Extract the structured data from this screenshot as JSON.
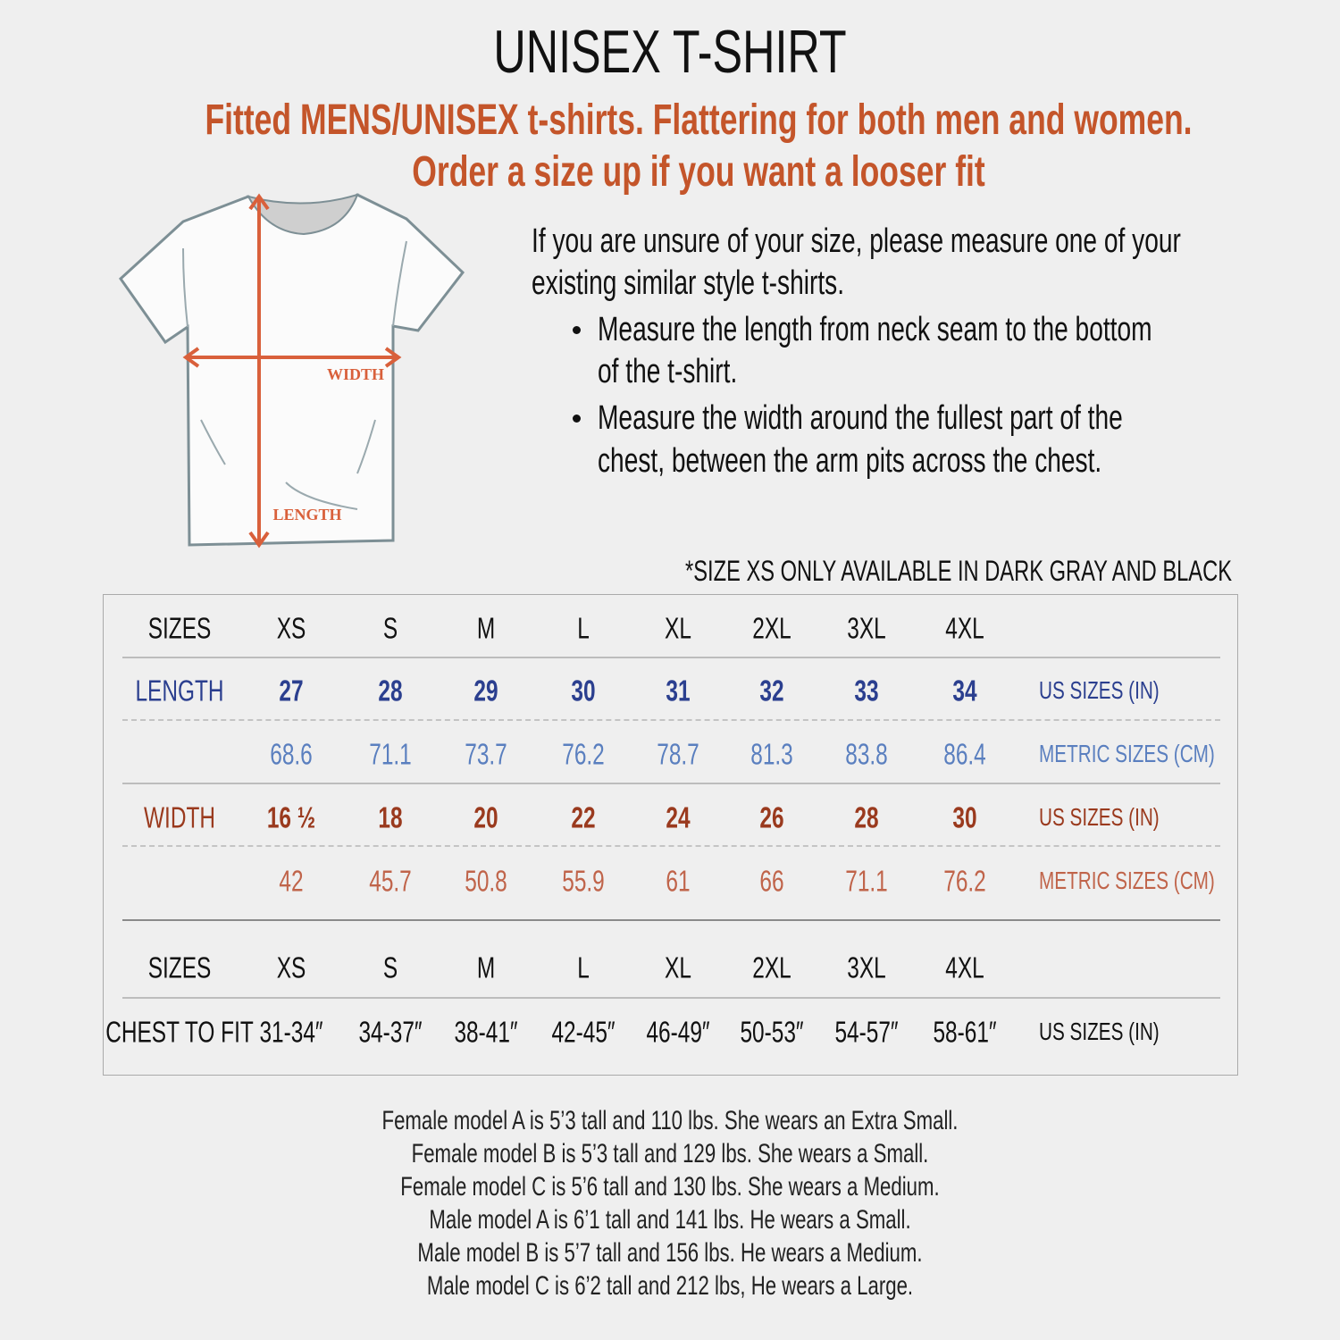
{
  "title": "UNISEX T-SHIRT",
  "subtitle": [
    "Fitted MENS/UNISEX t-shirts. Flattering for both men and women.",
    "Order a size up if you want a looser fit"
  ],
  "intro": [
    "If you are unsure of your size, please measure one of your",
    "existing similar style t-shirts."
  ],
  "bullets": [
    [
      "Measure the length from neck seam to the bottom",
      "of the t-shirt."
    ],
    [
      "Measure the width around the fullest part of the",
      "chest, between the arm pits across the chest."
    ]
  ],
  "diagram": {
    "width_label": "WIDTH",
    "length_label": "LENGTH",
    "arrow_color": "#d9603b"
  },
  "note": "*SIZE XS ONLY AVAILABLE IN DARK GRAY AND BLACK",
  "table1": {
    "sizes_label": "SIZES",
    "sizes": [
      "XS",
      "S",
      "M",
      "L",
      "XL",
      "2XL",
      "3XL",
      "4XL"
    ],
    "length_label": "LENGTH",
    "length_in": [
      "27",
      "28",
      "29",
      "30",
      "31",
      "32",
      "33",
      "34"
    ],
    "length_cm": [
      "68.6",
      "71.1",
      "73.7",
      "76.2",
      "78.7",
      "81.3",
      "83.8",
      "86.4"
    ],
    "width_label": "WIDTH",
    "width_in": [
      "16 ½",
      "18",
      "20",
      "22",
      "24",
      "26",
      "28",
      "30"
    ],
    "width_cm": [
      "42",
      "45.7",
      "50.8",
      "55.9",
      "61",
      "66",
      "71.1",
      "76.2"
    ],
    "us_unit": "US SIZES (IN)",
    "metric_unit": "METRIC SIZES (CM)"
  },
  "table2": {
    "sizes_label": "SIZES",
    "sizes": [
      "XS",
      "S",
      "M",
      "L",
      "XL",
      "2XL",
      "3XL",
      "4XL"
    ],
    "chest_label": "CHEST TO FIT",
    "chest": [
      "31-34″",
      "34-37″",
      "38-41″",
      "42-45″",
      "46-49″",
      "50-53″",
      "54-57″",
      "58-61″"
    ],
    "unit": "US SIZES (IN)"
  },
  "models": [
    "Female model A is 5’3 tall and 110 lbs. She wears an Extra Small.",
    "Female model B is 5’3 tall and 129 lbs. She wears a Small.",
    "Female model C is 5’6 tall and 130 lbs. She wears a Medium.",
    "Male model A is 6’1 tall and 141 lbs. He wears a Small.",
    "Male model B is 5’7 tall and 156 lbs. He wears a Medium.",
    "Male model C is 6’2 tall and 212 lbs, He wears a Large."
  ],
  "colors": {
    "accent": "#c4552a",
    "length_us": "#2b3f8f",
    "length_cm": "#5a7fbf",
    "width_us": "#9a3a1e",
    "width_cm": "#c0644a"
  }
}
